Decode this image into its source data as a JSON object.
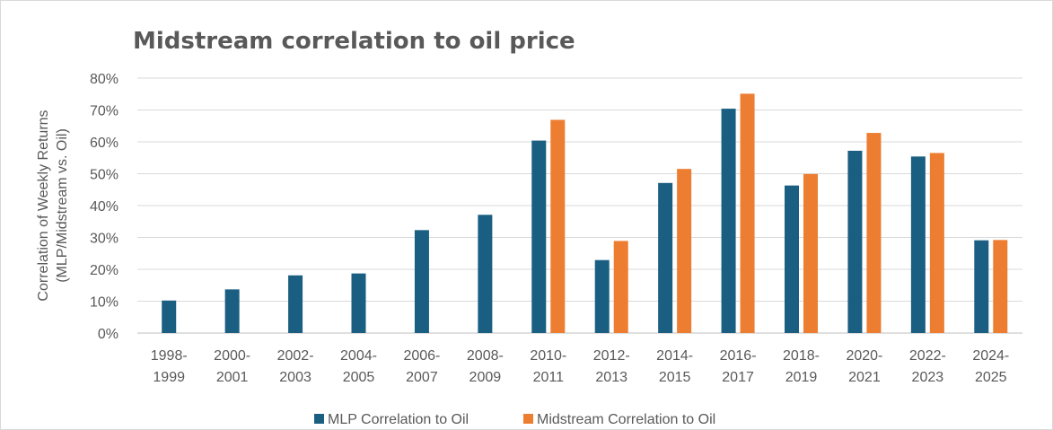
{
  "chart_data": {
    "type": "bar",
    "title": "Midstream correlation to oil price",
    "ylabel_lines": [
      "Correlation of Weekly Returns",
      "(MLP/Midstream vs. Oil)"
    ],
    "ylim": [
      0,
      80
    ],
    "yticks": [
      "0%",
      "10%",
      "20%",
      "30%",
      "40%",
      "50%",
      "60%",
      "70%",
      "80%"
    ],
    "grid": true,
    "legend_position": "bottom",
    "categories": [
      [
        "1998-",
        "1999"
      ],
      [
        "2000-",
        "2001"
      ],
      [
        "2002-",
        "2003"
      ],
      [
        "2004-",
        "2005"
      ],
      [
        "2006-",
        "2007"
      ],
      [
        "2008-",
        "2009"
      ],
      [
        "2010-",
        "2011"
      ],
      [
        "2012-",
        "2013"
      ],
      [
        "2014-",
        "2015"
      ],
      [
        "2016-",
        "2017"
      ],
      [
        "2018-",
        "2019"
      ],
      [
        "2020-",
        "2021"
      ],
      [
        "2022-",
        "2023"
      ],
      [
        "2024-",
        "2025"
      ]
    ],
    "series": [
      {
        "name": "MLP Correlation to Oil",
        "color": "#1a5f82",
        "values": [
          10.2,
          13.7,
          18.1,
          18.7,
          32.3,
          37.1,
          60.4,
          22.9,
          47.1,
          70.4,
          46.3,
          57.2,
          55.4,
          29.1
        ]
      },
      {
        "name": "Midstream Correlation to Oil",
        "color": "#ed7d31",
        "values": [
          null,
          null,
          null,
          null,
          null,
          null,
          66.9,
          28.9,
          51.5,
          75.1,
          49.9,
          62.8,
          56.5,
          29.2
        ]
      }
    ]
  }
}
